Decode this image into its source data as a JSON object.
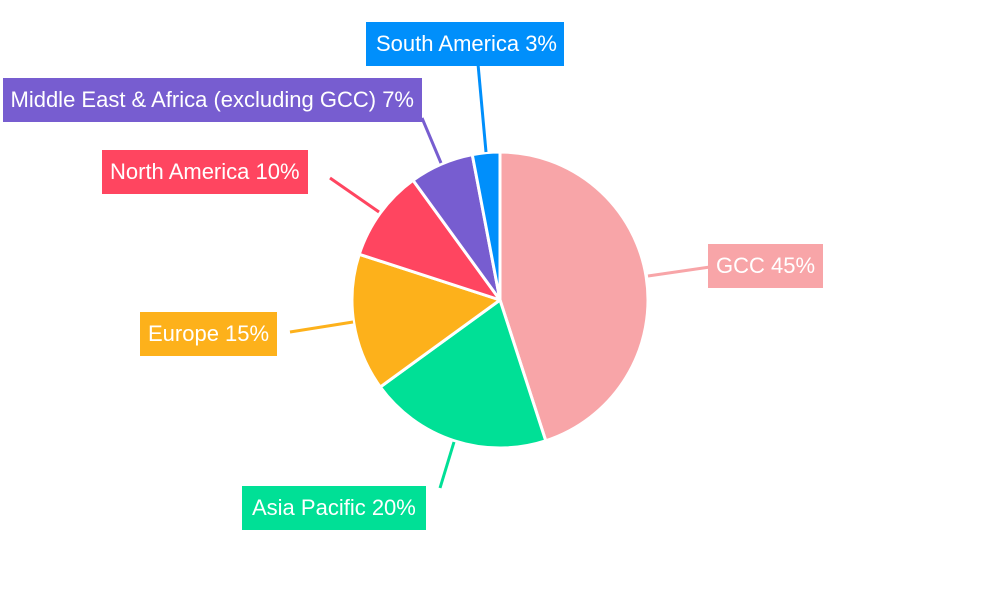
{
  "chart_data": {
    "type": "pie",
    "title": "",
    "start_angle_deg": 0,
    "direction": "clockwise",
    "slices": [
      {
        "label": "GCC",
        "value": 45,
        "color": "#F8A5A8",
        "text": "GCC 45%"
      },
      {
        "label": "Asia Pacific",
        "value": 20,
        "color": "#00E096",
        "text": "Asia Pacific 20%"
      },
      {
        "label": "Europe",
        "value": 15,
        "color": "#FDB11B",
        "text": "Europe 15%"
      },
      {
        "label": "North America",
        "value": 10,
        "color": "#FF4560",
        "text": "North America 10%"
      },
      {
        "label": "Middle East & Africa (excluding GCC)",
        "value": 7,
        "color": "#775DD0",
        "text": "Middle East & Africa (excluding GCC) 7%"
      },
      {
        "label": "South America",
        "value": 3,
        "color": "#008FFB",
        "text": "South America 3%"
      }
    ]
  },
  "labels": {
    "gcc": "GCC 45%",
    "asia_pacific": "Asia Pacific 20%",
    "europe": "Europe 15%",
    "north_america": "North America 10%",
    "mea": "Middle East & Africa (excluding GCC) 7%",
    "south_america": "South America 3%"
  }
}
